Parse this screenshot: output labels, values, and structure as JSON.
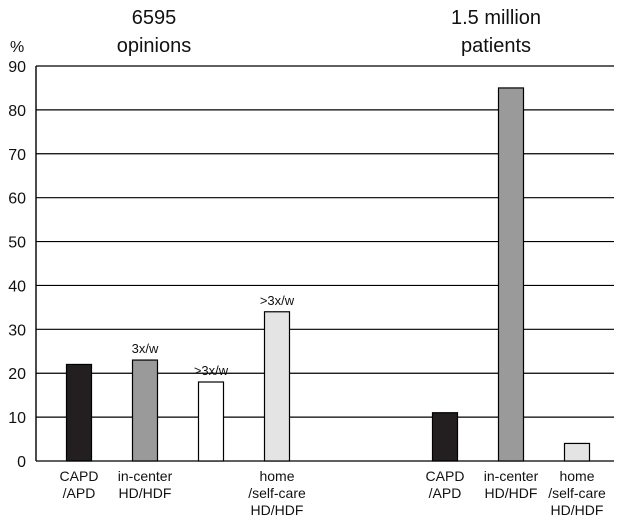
{
  "chart_data": {
    "type": "bar",
    "y_unit_label": "%",
    "ylim": [
      0,
      90
    ],
    "yticks": [
      0,
      10,
      20,
      30,
      40,
      50,
      60,
      70,
      80,
      90
    ],
    "grid": true,
    "groups": [
      {
        "title_lines": [
          "6595",
          "opinions"
        ],
        "bars": [
          {
            "label_lines": [
              "CAPD",
              "/APD"
            ],
            "value": 22,
            "fill": "#231f20",
            "annotation": ""
          },
          {
            "label_lines": [
              "in-center",
              "HD/HDF"
            ],
            "value": 23,
            "fill": "#9a9a9a",
            "annotation": "3x/w"
          },
          {
            "label_lines": [],
            "value": 18,
            "fill": "#ffffff",
            "annotation": ">3x/w"
          },
          {
            "label_lines": [
              "home",
              "/self-care",
              "HD/HDF"
            ],
            "value": 34,
            "fill": "#e4e4e4",
            "annotation": ">3x/w"
          }
        ]
      },
      {
        "title_lines": [
          "1.5 million",
          "patients"
        ],
        "bars": [
          {
            "label_lines": [
              "CAPD",
              "/APD"
            ],
            "value": 11,
            "fill": "#231f20",
            "annotation": ""
          },
          {
            "label_lines": [
              "in-center",
              "HD/HDF"
            ],
            "value": 85,
            "fill": "#9a9a9a",
            "annotation": ""
          },
          {
            "label_lines": [
              "home",
              "/self-care",
              "HD/HDF"
            ],
            "value": 4,
            "fill": "#e4e4e4",
            "annotation": ""
          }
        ]
      }
    ]
  }
}
